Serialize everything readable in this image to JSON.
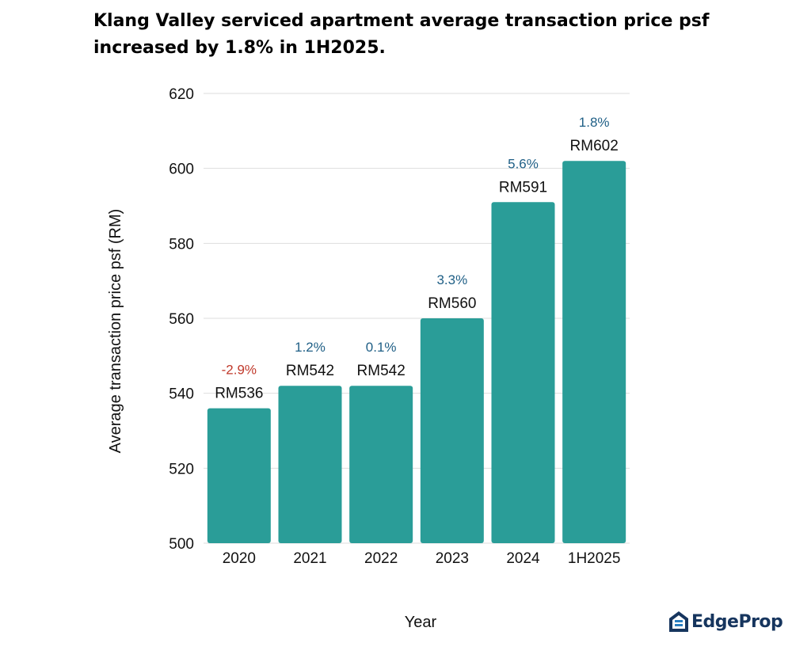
{
  "title": "Klang Valley serviced apartment average transaction price psf increased by 1.8% in 1H2025.",
  "brand": {
    "name": "EdgeProp",
    "color": "#16355e",
    "accent": "#2a7fc1"
  },
  "colors": {
    "bar": "#2a9d98",
    "grid": "#dedede",
    "positive": "#1f5f86",
    "negative": "#c0392b"
  },
  "chart_data": {
    "type": "bar",
    "title": "Klang Valley serviced apartment average transaction price psf increased by 1.8% in 1H2025.",
    "xlabel": "Year",
    "ylabel": "Average transaction price psf (RM)",
    "categories": [
      "2020",
      "2021",
      "2022",
      "2023",
      "2024",
      "1H2025"
    ],
    "values": [
      536,
      542,
      542,
      560,
      591,
      602
    ],
    "value_labels": [
      "RM536",
      "RM542",
      "RM542",
      "RM560",
      "RM591",
      "RM602"
    ],
    "change_labels": [
      "-2.9%",
      "1.2%",
      "0.1%",
      "3.3%",
      "5.6%",
      "1.8%"
    ],
    "ylim": [
      500,
      620
    ],
    "yticks": [
      500,
      520,
      540,
      560,
      580,
      600,
      620
    ],
    "grid": true,
    "legend": "none"
  }
}
